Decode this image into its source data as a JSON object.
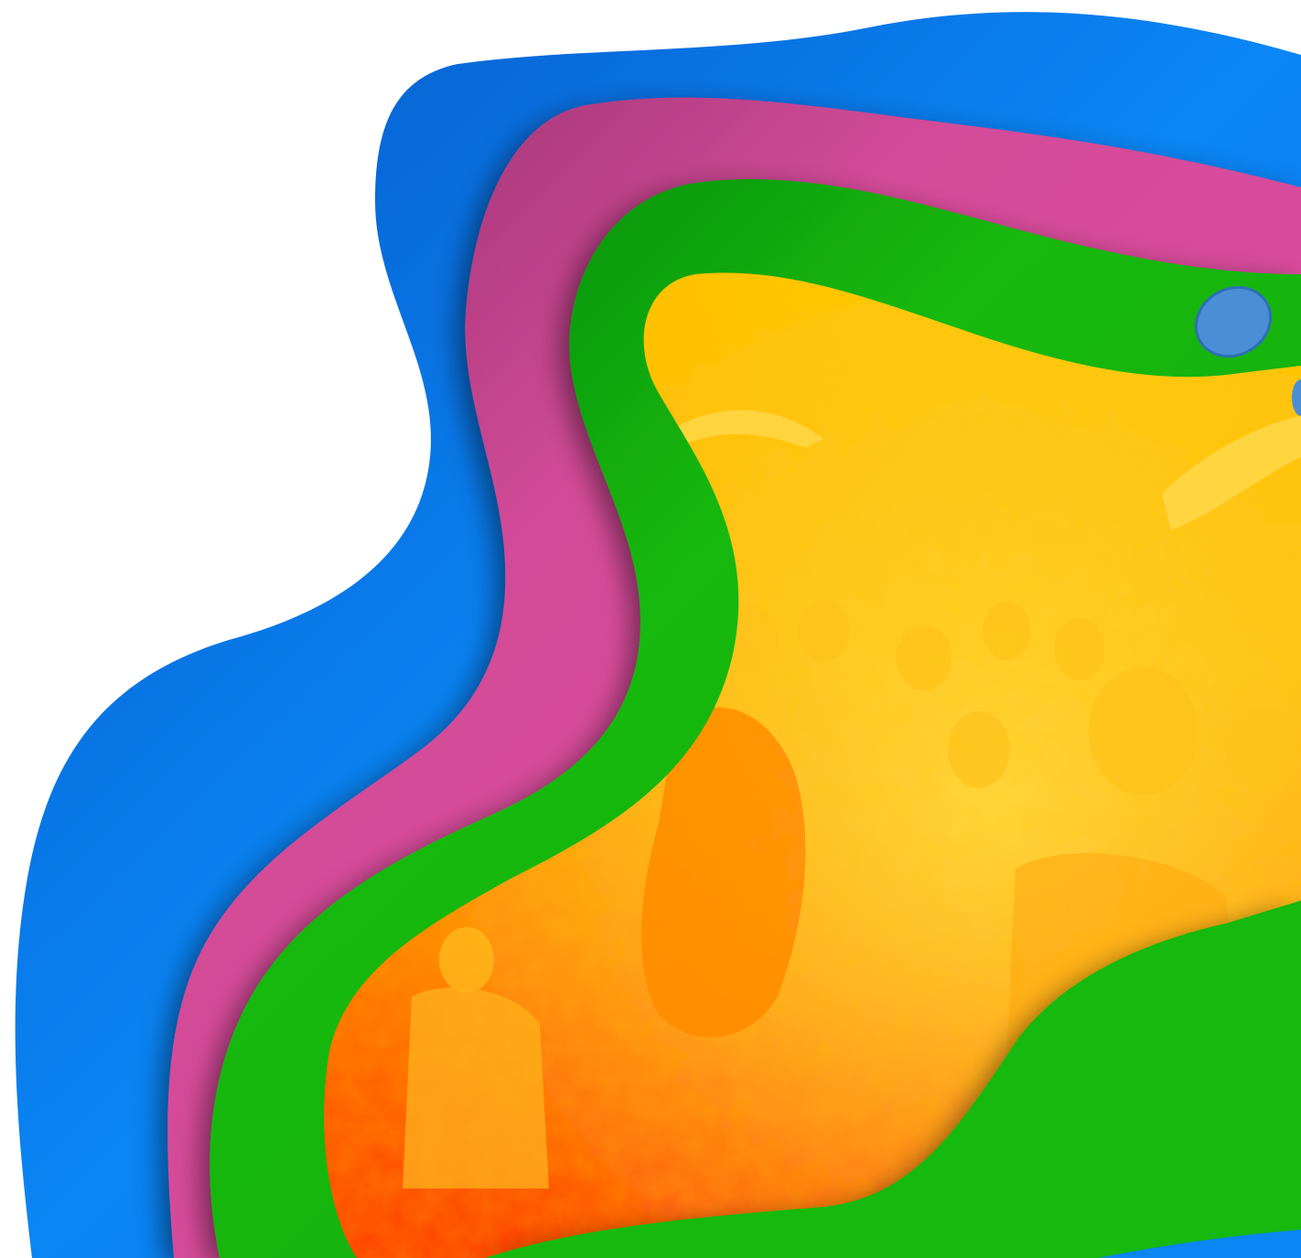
{
  "image": {
    "kind": "layered paper-cut frame around a duotone crowd photo",
    "layers": [
      "blue",
      "pink",
      "green",
      "photo"
    ],
    "colors": {
      "background": "#ffffff",
      "blue_outer": "#0a6fe6",
      "blue_light": "#0a86f5",
      "pink": "#e04fa0",
      "pink_shadow": "#9a2f6e",
      "green": "#14b90f",
      "green_dark": "#0a8f0a",
      "photo_yellow": "#ffd200",
      "photo_orange": "#ff9a00",
      "photo_red": "#ff4a00",
      "droplet": "#4a8fd6"
    },
    "decorations": [
      "droplet-shape"
    ]
  }
}
